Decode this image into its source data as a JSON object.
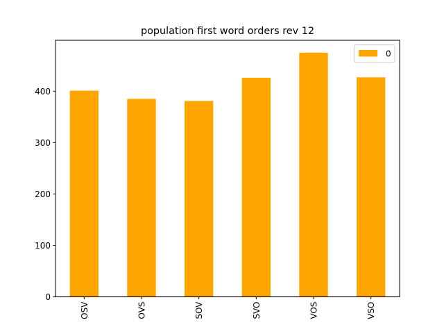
{
  "chart_data": {
    "type": "bar",
    "title": "population first word orders rev 12",
    "xlabel": "",
    "ylabel": "",
    "categories": [
      "OSV",
      "OVS",
      "SOV",
      "SVO",
      "VOS",
      "VSO"
    ],
    "series": [
      {
        "name": "0",
        "color": "#ffa500",
        "values": [
          401,
          385,
          381,
          426,
          475,
          427
        ]
      }
    ],
    "ylim": [
      0,
      499
    ],
    "yticks": [
      0,
      100,
      200,
      300,
      400
    ],
    "ytick_labels": [
      "0",
      "100",
      "200",
      "300",
      "400"
    ],
    "grid": false,
    "legend_position": "upper-right",
    "xtick_rotation": "vertical"
  }
}
